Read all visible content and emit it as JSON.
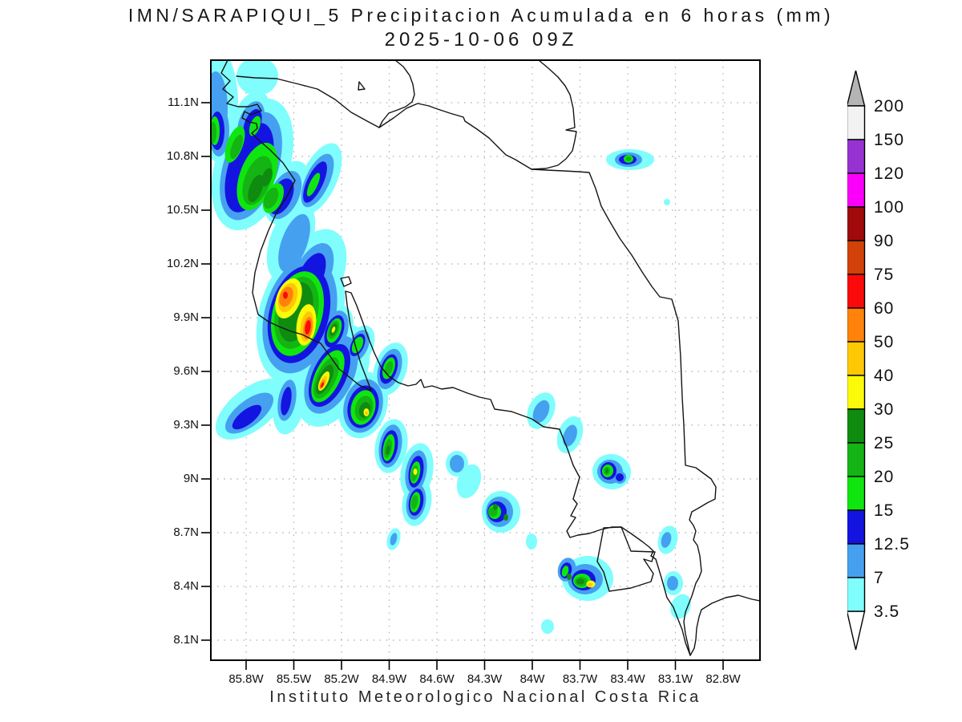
{
  "title": {
    "line1": "IMN/SARAPIQUI_5 Precipitacion Acumulada en 6 horas (mm)",
    "line2": "2025-10-06 09Z"
  },
  "footer": "Instituto Meteorologico Nacional Costa Rica",
  "axes": {
    "lat_labels": [
      "11.1N",
      "10.8N",
      "10.5N",
      "10.2N",
      "9.9N",
      "9.6N",
      "9.3N",
      "9N",
      "8.7N",
      "8.4N",
      "8.1N"
    ],
    "lon_labels": [
      "85.8W",
      "85.5W",
      "85.2W",
      "84.9W",
      "84.6W",
      "84.3W",
      "84W",
      "83.7W",
      "83.4W",
      "83.1W",
      "82.8W"
    ]
  },
  "colorbar": {
    "labels_top_to_bottom": [
      "200",
      "150",
      "120",
      "100",
      "90",
      "75",
      "60",
      "50",
      "40",
      "30",
      "25",
      "20",
      "15",
      "12.5",
      "7",
      "3.5"
    ],
    "colors_top_to_bottom": [
      "#f2f2f2",
      "#9632d2",
      "#fa00fa",
      "#a00a0a",
      "#d24108",
      "#fa0a0a",
      "#ff820a",
      "#ffc805",
      "#fafa0a",
      "#0f8c0f",
      "#14b414",
      "#0fe60f",
      "#1414e1",
      "#46a0f0",
      "#80fdfd"
    ],
    "arrow_top_color": "#b4b4b4",
    "arrow_bottom_color": "#ffffff"
  },
  "palette": {
    "p3_5": "#80fdfd",
    "p7": "#46a0f0",
    "p12_5": "#1414e1",
    "p15": "#0fe60f",
    "p20": "#14b414",
    "p25": "#0f8c0f",
    "p30": "#fafa0a",
    "p40": "#ffc805",
    "p50": "#ff820a",
    "p60": "#fa0a0a"
  },
  "map": {
    "grid_color": "#b0b0b0",
    "coast_color": "#141414",
    "units": "mm"
  }
}
